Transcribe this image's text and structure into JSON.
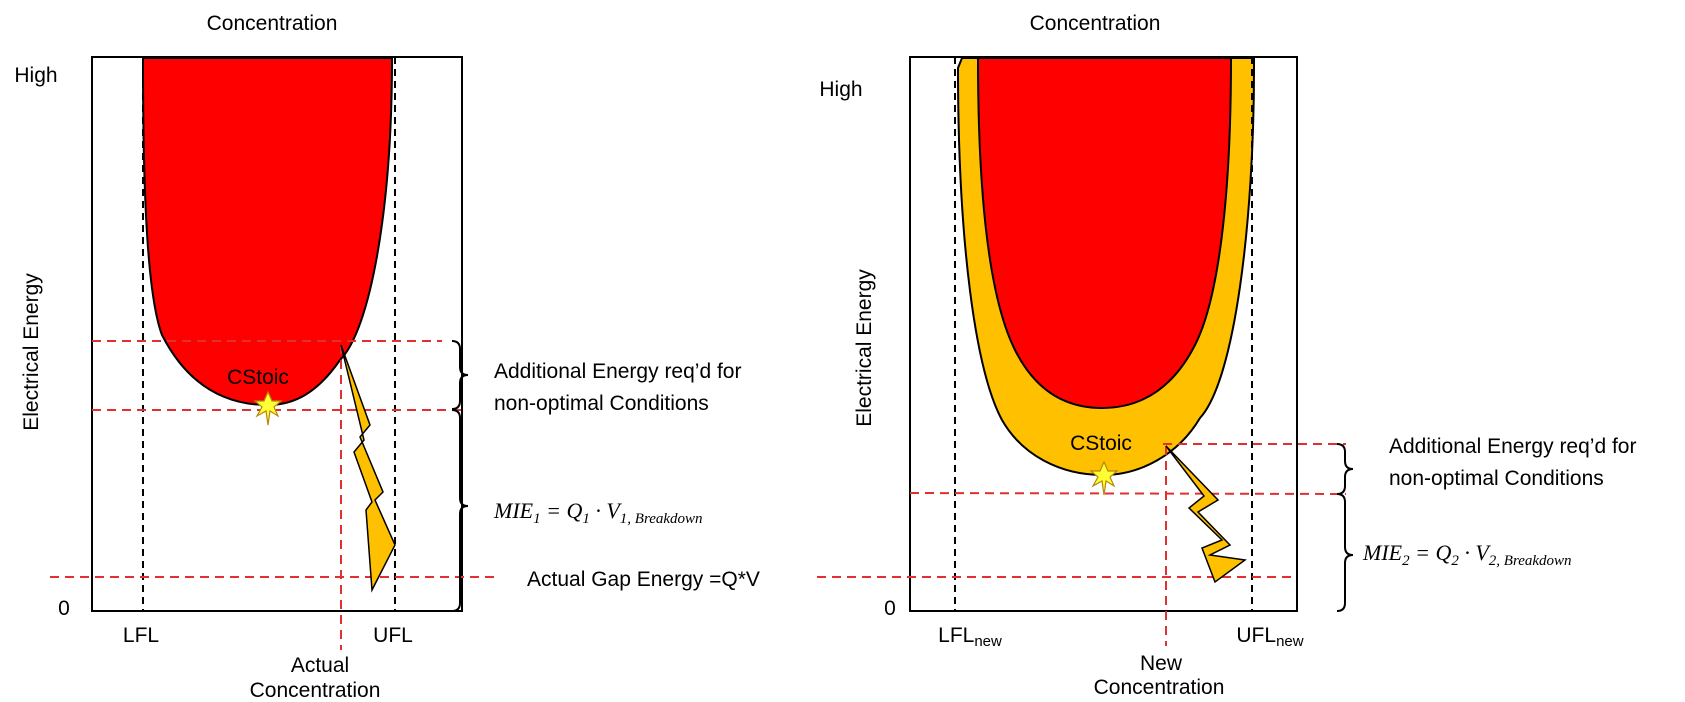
{
  "left": {
    "title": "Concentration",
    "y_axis": "Electrical Energy",
    "y_high": "High",
    "y_zero": "0",
    "lfl": "LFL",
    "ufl": "UFL",
    "stoic": "CStoic",
    "conc_line1": "Actual",
    "conc_line2": "Concentration",
    "additional_line1": "Additional Energy req’d for",
    "additional_line2": "non-optimal Conditions",
    "mie": {
      "base": "MIE",
      "sub1": "1",
      "eq": " = Q",
      "sub2": "1",
      "dot": " · V",
      "sub3": "1, Breakdown"
    },
    "gap_energy": "Actual Gap Energy =Q*V"
  },
  "right": {
    "title": "Concentration",
    "y_axis": "Electrical Energy",
    "y_high": "High",
    "y_zero": "0",
    "lfl_base": "LFL",
    "lfl_sub": "new",
    "ufl_base": "UFL",
    "ufl_sub": "new",
    "stoic": "CStoic",
    "conc_line1": "New",
    "conc_line2": "Concentration",
    "additional_line1": "Additional Energy req’d for",
    "additional_line2": "non-optimal Conditions",
    "mie": {
      "base": "MIE",
      "sub1": "2",
      "eq": " = Q",
      "sub2": "2",
      "dot": " · V",
      "sub3": "2, Breakdown"
    }
  },
  "colors": {
    "flammable_red": "#ff0000",
    "expanded_orange": "#ffc000",
    "dashed_red": "#e03030",
    "star": "#ffff33"
  }
}
